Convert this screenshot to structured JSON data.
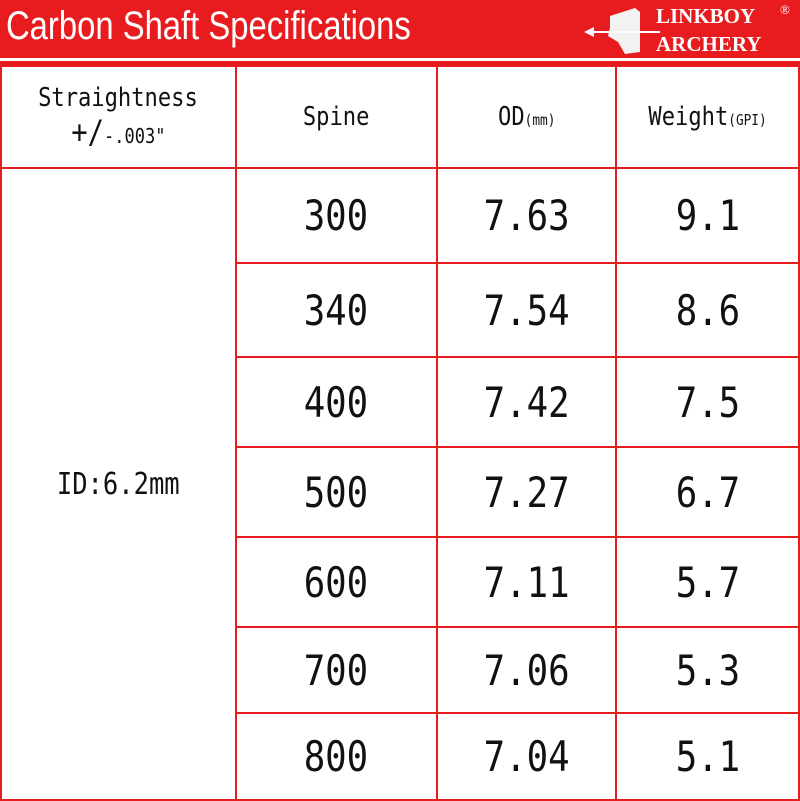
{
  "header": {
    "title": "Carbon Shaft Specifications",
    "logo": {
      "line1": "LINKBOY",
      "line2": "ARCHERY",
      "mark": "®"
    }
  },
  "colors": {
    "accent": "#e81c1f"
  },
  "table": {
    "headers": {
      "straightness": "Straightness",
      "tolerance_sign": "+/",
      "tolerance": "-.003\"",
      "spine": "Spine",
      "od": "OD",
      "od_unit": "(mm)",
      "weight": "Weight",
      "weight_unit": "(GPI)"
    },
    "id_value": "ID:6.2mm",
    "rows": [
      {
        "spine": "300",
        "od": "7.63",
        "weight": "9.1"
      },
      {
        "spine": "340",
        "od": "7.54",
        "weight": "8.6"
      },
      {
        "spine": "400",
        "od": "7.42",
        "weight": "7.5"
      },
      {
        "spine": "500",
        "od": "7.27",
        "weight": "6.7"
      },
      {
        "spine": "600",
        "od": "7.11",
        "weight": "5.7"
      },
      {
        "spine": "700",
        "od": "7.06",
        "weight": "5.3"
      },
      {
        "spine": "800",
        "od": "7.04",
        "weight": "5.1"
      }
    ]
  }
}
